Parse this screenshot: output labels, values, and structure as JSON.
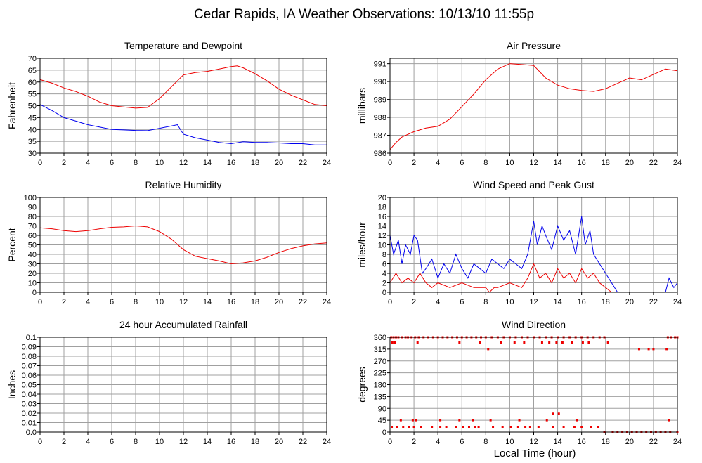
{
  "page": {
    "title": "Cedar Rapids, IA Weather Observations: 10/13/10 11:55p",
    "xlabel": "Local Time (hour)"
  },
  "colors": {
    "red": "#ee0000",
    "blue": "#0000ee",
    "grid": "#a0a0a0",
    "axis": "#000000"
  },
  "chart_data": [
    {
      "id": "temp",
      "type": "line",
      "title": "Temperature and Dewpoint",
      "xlabel": "",
      "ylabel": "Fahrenheit",
      "xlim": [
        0,
        24
      ],
      "ylim": [
        30,
        70
      ],
      "grid": true,
      "xticks": [
        0,
        2,
        4,
        6,
        8,
        10,
        12,
        14,
        16,
        18,
        20,
        22,
        24
      ],
      "yticks": [
        30,
        35,
        40,
        45,
        50,
        55,
        60,
        65,
        70
      ],
      "series": [
        {
          "color": "#ee0000",
          "x": [
            0,
            1,
            2,
            3,
            4,
            5,
            6,
            7,
            8,
            9,
            10,
            11,
            12,
            13,
            14,
            15,
            16,
            16.5,
            17,
            18,
            19,
            20,
            21,
            22,
            23,
            24
          ],
          "y": [
            61,
            59.5,
            57.5,
            56,
            54,
            51.5,
            50,
            49.5,
            49,
            49.3,
            53,
            58,
            63,
            64,
            64.5,
            65.5,
            66.5,
            66.8,
            66,
            63.5,
            60.5,
            57,
            54.5,
            52.5,
            50.5,
            50
          ]
        },
        {
          "color": "#0000ee",
          "x": [
            0,
            1,
            2,
            3,
            4,
            5,
            6,
            7,
            8,
            9,
            10,
            11,
            11.5,
            12,
            13,
            14,
            15,
            16,
            17,
            18,
            19,
            20,
            21,
            22,
            23,
            24
          ],
          "y": [
            50.5,
            48,
            45,
            43.5,
            42,
            41,
            40,
            39.8,
            39.6,
            39.5,
            40.5,
            41.5,
            42,
            38,
            36.5,
            35.5,
            34.5,
            34,
            34.8,
            34.5,
            34.5,
            34.3,
            34,
            34,
            33.5,
            33.5
          ]
        }
      ]
    },
    {
      "id": "pressure",
      "type": "line",
      "title": "Air Pressure",
      "xlabel": "",
      "ylabel": "millibars",
      "xlim": [
        0,
        24
      ],
      "ylim": [
        986,
        991.3
      ],
      "grid": true,
      "xticks": [
        0,
        2,
        4,
        6,
        8,
        10,
        12,
        14,
        16,
        18,
        20,
        22,
        24
      ],
      "yticks": [
        986,
        987,
        988,
        989,
        990,
        991
      ],
      "series": [
        {
          "color": "#ee0000",
          "x": [
            0,
            0.5,
            1,
            2,
            3,
            4,
            5,
            6,
            7,
            8,
            9,
            10,
            11,
            12,
            13,
            14,
            15,
            16,
            17,
            18,
            19,
            20,
            21,
            22,
            23,
            24
          ],
          "y": [
            986.2,
            986.6,
            986.9,
            987.2,
            987.4,
            987.5,
            987.9,
            988.6,
            989.3,
            990.1,
            990.7,
            991.0,
            990.95,
            990.9,
            990.2,
            989.8,
            989.6,
            989.5,
            989.45,
            989.6,
            989.9,
            990.2,
            990.1,
            990.4,
            990.7,
            990.6
          ]
        }
      ]
    },
    {
      "id": "humidity",
      "type": "line",
      "title": "Relative Humidity",
      "xlabel": "",
      "ylabel": "Percent",
      "xlim": [
        0,
        24
      ],
      "ylim": [
        0,
        100
      ],
      "grid": true,
      "xticks": [
        0,
        2,
        4,
        6,
        8,
        10,
        12,
        14,
        16,
        18,
        20,
        22,
        24
      ],
      "yticks": [
        0,
        10,
        20,
        30,
        40,
        50,
        60,
        70,
        80,
        90,
        100
      ],
      "series": [
        {
          "color": "#ee0000",
          "x": [
            0,
            1,
            2,
            3,
            4,
            5,
            6,
            7,
            8,
            9,
            10,
            11,
            12,
            13,
            14,
            15,
            16,
            17,
            18,
            19,
            20,
            21,
            22,
            23,
            24
          ],
          "y": [
            68,
            67,
            65,
            64,
            65,
            67,
            68.5,
            69,
            70,
            69,
            64,
            56,
            45,
            38,
            35.5,
            33,
            30,
            31,
            33,
            37,
            42,
            46,
            49,
            51,
            52
          ]
        }
      ]
    },
    {
      "id": "wind",
      "type": "line",
      "title": "Wind Speed and Peak Gust",
      "xlabel": "",
      "ylabel": "miles/hour",
      "xlim": [
        0,
        24
      ],
      "ylim": [
        0,
        20
      ],
      "grid": true,
      "xticks": [
        0,
        2,
        4,
        6,
        8,
        10,
        12,
        14,
        16,
        18,
        20,
        22,
        24
      ],
      "yticks": [
        0,
        2,
        4,
        6,
        8,
        10,
        12,
        14,
        16,
        18,
        20
      ],
      "series": [
        {
          "color": "#0000ee",
          "x": [
            0,
            0.3,
            0.7,
            1,
            1.3,
            1.7,
            2,
            2.3,
            2.7,
            3,
            3.5,
            4,
            4.5,
            5,
            5.5,
            6,
            6.5,
            7,
            7.5,
            8,
            8.5,
            9,
            9.5,
            10,
            10.5,
            11,
            11.5,
            12,
            12.3,
            12.7,
            13,
            13.5,
            14,
            14.5,
            15,
            15.5,
            16,
            16.3,
            16.7,
            17,
            17.5,
            18,
            18.5,
            19,
            20,
            21,
            22,
            23,
            23.3,
            23.7,
            24
          ],
          "y": [
            12,
            8,
            11,
            6,
            10,
            8,
            12,
            11,
            4,
            5,
            7,
            3,
            6,
            4,
            8,
            5,
            3,
            6,
            5,
            4,
            7,
            6,
            5,
            7,
            6,
            5,
            8,
            15,
            10,
            14,
            12,
            9,
            14,
            11,
            13,
            8,
            16,
            10,
            13,
            8,
            6,
            4,
            2,
            0,
            0,
            0,
            0,
            0,
            3,
            1,
            2
          ]
        },
        {
          "color": "#ee0000",
          "x": [
            0,
            0.5,
            1,
            1.5,
            2,
            2.5,
            3,
            3.5,
            4,
            5,
            6,
            7,
            8,
            8.3,
            8.7,
            9,
            10,
            11,
            11.5,
            12,
            12.5,
            13,
            13.5,
            14,
            14.5,
            15,
            15.5,
            16,
            16.5,
            17,
            17.5,
            18,
            18.5,
            19,
            24
          ],
          "y": [
            2,
            4,
            2,
            3,
            2,
            4,
            2,
            1,
            2,
            1,
            2,
            1,
            1,
            0,
            1,
            1,
            2,
            1,
            3,
            6,
            3,
            4,
            2,
            5,
            3,
            4,
            2,
            5,
            3,
            4,
            2,
            1,
            0,
            0,
            0
          ]
        }
      ]
    },
    {
      "id": "rain",
      "type": "line",
      "title": "24 hour Accumulated Rainfall",
      "xlabel": "",
      "ylabel": "Inches",
      "xlim": [
        0,
        24
      ],
      "ylim": [
        0,
        0.1
      ],
      "grid": true,
      "xticks": [
        0,
        2,
        4,
        6,
        8,
        10,
        12,
        14,
        16,
        18,
        20,
        22,
        24
      ],
      "yticks": [
        0.0,
        0.01,
        0.02,
        0.03,
        0.04,
        0.05,
        0.06,
        0.07,
        0.08,
        0.09,
        0.1
      ],
      "ytick_labels": [
        "0.0",
        "0.01",
        "0.02",
        "0.03",
        "0.04",
        "0.05",
        "0.06",
        "0.07",
        "0.08",
        "0.09",
        "0.1"
      ],
      "series": [
        {
          "color": "#ee0000",
          "x": [
            0,
            24
          ],
          "y": [
            0,
            0
          ]
        }
      ]
    },
    {
      "id": "direction",
      "type": "scatter",
      "title": "Wind Direction",
      "xlabel": "",
      "ylabel": "degrees",
      "xlim": [
        0,
        24
      ],
      "ylim": [
        0,
        360
      ],
      "grid": true,
      "xticks": [
        0,
        2,
        4,
        6,
        8,
        10,
        12,
        14,
        16,
        18,
        20,
        22,
        24
      ],
      "yticks": [
        0,
        45,
        90,
        135,
        180,
        225,
        270,
        315,
        360
      ],
      "series": [
        {
          "color": "#ee0000",
          "marker": "dot",
          "x": [
            0.1,
            0.3,
            0.5,
            0.7,
            1,
            1.3,
            1.5,
            1.8,
            2.1,
            2.4,
            2.8,
            3.2,
            3.6,
            4,
            4.4,
            4.8,
            5.2,
            5.6,
            6,
            6.4,
            6.8,
            7.2,
            7.6,
            8,
            8.5,
            9,
            9.5,
            10,
            10.5,
            11,
            11.5,
            12,
            12.5,
            13,
            13.5,
            14,
            14.5,
            15,
            15.5,
            16,
            16.5,
            17,
            17.5,
            17.9,
            23.2,
            23.5,
            23.8,
            24,
            0.2,
            0.4,
            2.3,
            5.8,
            7.5,
            8.2,
            9.3,
            10.4,
            11.2,
            12.7,
            13.3,
            13.9,
            14.4,
            15.2,
            16.1,
            16.6,
            18.2,
            20.8,
            21.6,
            22,
            23.1,
            0.15,
            0.6,
            1.1,
            1.6,
            2,
            2.6,
            3.5,
            4.2,
            4.7,
            5.5,
            6.1,
            6.6,
            7.1,
            7.4,
            8.6,
            9.4,
            10.1,
            10.7,
            11.3,
            11.7,
            12.4,
            13.6,
            14.5,
            15.4,
            16,
            16.8,
            17.4,
            0.9,
            1.9,
            2.2,
            4.2,
            5.8,
            6.9,
            8.4,
            10.8,
            13.1,
            13.6,
            14.1,
            15.6,
            23.3,
            17.9,
            18.6,
            19,
            19.4,
            19.8,
            20.2,
            20.6,
            21,
            21.4,
            21.8,
            22.2,
            22.6,
            23,
            23.4,
            24
          ],
          "y": [
            360,
            360,
            360,
            360,
            360,
            360,
            360,
            360,
            360,
            360,
            360,
            360,
            360,
            360,
            360,
            360,
            360,
            360,
            360,
            360,
            360,
            360,
            360,
            360,
            360,
            360,
            360,
            360,
            360,
            360,
            360,
            360,
            360,
            360,
            360,
            360,
            360,
            360,
            360,
            360,
            360,
            360,
            360,
            360,
            360,
            360,
            360,
            360,
            340,
            340,
            340,
            340,
            340,
            315,
            340,
            340,
            340,
            340,
            340,
            340,
            340,
            340,
            340,
            340,
            340,
            315,
            315,
            315,
            315,
            20,
            20,
            20,
            20,
            20,
            20,
            20,
            20,
            20,
            20,
            20,
            20,
            20,
            20,
            20,
            20,
            20,
            20,
            20,
            20,
            20,
            20,
            20,
            20,
            20,
            20,
            20,
            45,
            45,
            45,
            45,
            45,
            45,
            45,
            45,
            45,
            70,
            70,
            45,
            45,
            0,
            0,
            0,
            0,
            0,
            0,
            0,
            0,
            0,
            0,
            0,
            0,
            0,
            0,
            0
          ]
        }
      ]
    }
  ]
}
